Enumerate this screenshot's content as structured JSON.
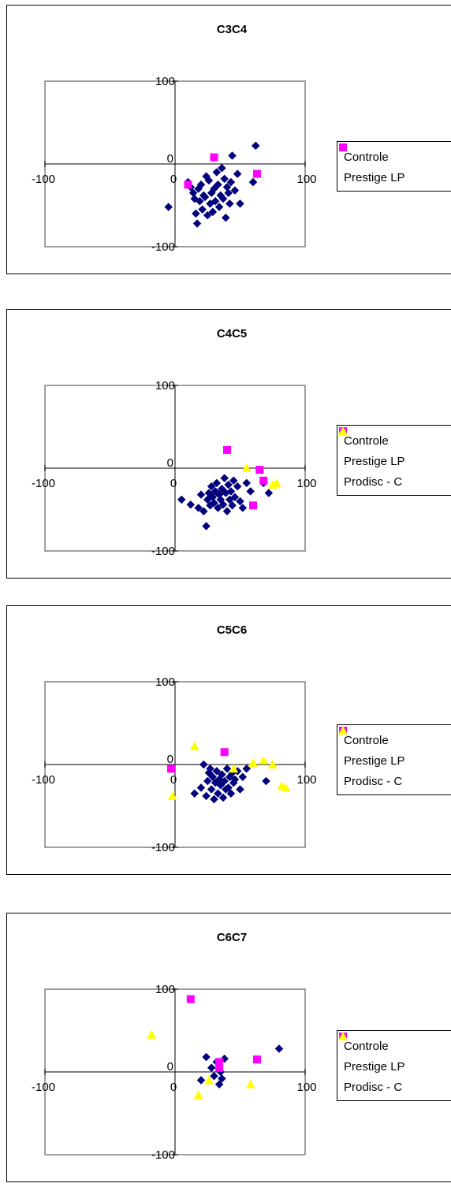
{
  "chart_data": [
    {
      "type": "scatter",
      "title": "C3C4",
      "xlim": [
        -100,
        100
      ],
      "ylim": [
        -100,
        100
      ],
      "tick_labels": {
        "x_neg": "-100",
        "x_zero": "0",
        "x_pos": "100",
        "y_pos": "100",
        "y_zero": "0",
        "y_neg": "-100"
      },
      "series": [
        {
          "name": "Controle",
          "marker": "diamond",
          "color": "#000080",
          "points": [
            [
              -5,
              -52
            ],
            [
              10,
              -22
            ],
            [
              12,
              -28
            ],
            [
              14,
              -35
            ],
            [
              15,
              -42
            ],
            [
              16,
              -60
            ],
            [
              17,
              -72
            ],
            [
              18,
              -30
            ],
            [
              19,
              -45
            ],
            [
              20,
              -25
            ],
            [
              21,
              -55
            ],
            [
              22,
              -38
            ],
            [
              23,
              -40
            ],
            [
              24,
              -15
            ],
            [
              25,
              -62
            ],
            [
              26,
              -20
            ],
            [
              27,
              -48
            ],
            [
              28,
              -35
            ],
            [
              29,
              -58
            ],
            [
              30,
              -30
            ],
            [
              31,
              -45
            ],
            [
              32,
              -10
            ],
            [
              33,
              -25
            ],
            [
              34,
              -52
            ],
            [
              35,
              -38
            ],
            [
              36,
              -5
            ],
            [
              37,
              -42
            ],
            [
              38,
              -18
            ],
            [
              39,
              -65
            ],
            [
              40,
              -28
            ],
            [
              41,
              -35
            ],
            [
              42,
              -48
            ],
            [
              43,
              -22
            ],
            [
              44,
              10
            ],
            [
              46,
              -32
            ],
            [
              48,
              -12
            ],
            [
              50,
              -48
            ],
            [
              60,
              -22
            ],
            [
              62,
              22
            ]
          ]
        },
        {
          "name": "Prestige LP",
          "marker": "square",
          "color": "#ff00ff",
          "points": [
            [
              10,
              -25
            ],
            [
              30,
              8
            ],
            [
              63,
              -12
            ]
          ]
        }
      ]
    },
    {
      "type": "scatter",
      "title": "C4C5",
      "xlim": [
        -100,
        100
      ],
      "ylim": [
        -100,
        100
      ],
      "tick_labels": {
        "x_neg": "-100",
        "x_zero": "0",
        "x_pos": "100",
        "y_pos": "100",
        "y_zero": "0",
        "y_neg": "-100"
      },
      "series": [
        {
          "name": "Controle",
          "marker": "diamond",
          "color": "#000080",
          "points": [
            [
              5,
              -38
            ],
            [
              12,
              -44
            ],
            [
              18,
              -48
            ],
            [
              20,
              -32
            ],
            [
              22,
              -52
            ],
            [
              24,
              -70
            ],
            [
              25,
              -38
            ],
            [
              26,
              -30
            ],
            [
              27,
              -45
            ],
            [
              28,
              -22
            ],
            [
              29,
              -35
            ],
            [
              30,
              -42
            ],
            [
              31,
              -28
            ],
            [
              32,
              -18
            ],
            [
              33,
              -48
            ],
            [
              34,
              -32
            ],
            [
              35,
              -38
            ],
            [
              36,
              -25
            ],
            [
              37,
              -44
            ],
            [
              38,
              -12
            ],
            [
              39,
              -30
            ],
            [
              40,
              -52
            ],
            [
              41,
              -20
            ],
            [
              42,
              -38
            ],
            [
              43,
              -28
            ],
            [
              44,
              -45
            ],
            [
              45,
              -15
            ],
            [
              46,
              -35
            ],
            [
              48,
              -22
            ],
            [
              50,
              -40
            ],
            [
              52,
              -48
            ],
            [
              55,
              -18
            ],
            [
              58,
              -28
            ],
            [
              68,
              -18
            ],
            [
              72,
              -30
            ]
          ]
        },
        {
          "name": "Prestige LP",
          "marker": "square",
          "color": "#ff00ff",
          "points": [
            [
              40,
              22
            ],
            [
              60,
              -45
            ],
            [
              65,
              -2
            ],
            [
              68,
              -15
            ]
          ]
        },
        {
          "name": "Prodisc - C",
          "marker": "triangle",
          "color": "#ffff00",
          "points": [
            [
              55,
              0
            ],
            [
              75,
              -20
            ],
            [
              78,
              -18
            ]
          ]
        }
      ]
    },
    {
      "type": "scatter",
      "title": "C5C6",
      "xlim": [
        -100,
        100
      ],
      "ylim": [
        -100,
        100
      ],
      "tick_labels": {
        "x_neg": "-100",
        "x_zero": "0",
        "x_pos": "100",
        "y_pos": "100",
        "y_zero": "0",
        "y_neg": "-100"
      },
      "series": [
        {
          "name": "Controle",
          "marker": "diamond",
          "color": "#000080",
          "points": [
            [
              15,
              -35
            ],
            [
              20,
              -28
            ],
            [
              22,
              0
            ],
            [
              24,
              -38
            ],
            [
              25,
              -20
            ],
            [
              26,
              -10
            ],
            [
              27,
              -5
            ],
            [
              28,
              -30
            ],
            [
              29,
              -15
            ],
            [
              30,
              -42
            ],
            [
              31,
              -22
            ],
            [
              32,
              -8
            ],
            [
              33,
              -35
            ],
            [
              34,
              -18
            ],
            [
              35,
              -25
            ],
            [
              36,
              -12
            ],
            [
              37,
              -40
            ],
            [
              38,
              -20
            ],
            [
              39,
              -30
            ],
            [
              40,
              -5
            ],
            [
              41,
              -28
            ],
            [
              42,
              -15
            ],
            [
              43,
              -35
            ],
            [
              44,
              -10
            ],
            [
              45,
              -22
            ],
            [
              46,
              -18
            ],
            [
              48,
              -8
            ],
            [
              50,
              -30
            ],
            [
              52,
              -15
            ],
            [
              55,
              -5
            ],
            [
              70,
              -20
            ]
          ]
        },
        {
          "name": "Prestige LP",
          "marker": "square",
          "color": "#ff00ff",
          "points": [
            [
              -3,
              -5
            ],
            [
              38,
              15
            ]
          ]
        },
        {
          "name": "Prodisc - C",
          "marker": "triangle",
          "color": "#ffff00",
          "points": [
            [
              -2,
              -38
            ],
            [
              15,
              22
            ],
            [
              45,
              -5
            ],
            [
              60,
              2
            ],
            [
              68,
              5
            ],
            [
              75,
              0
            ],
            [
              82,
              -26
            ],
            [
              85,
              -28
            ]
          ]
        }
      ]
    },
    {
      "type": "scatter",
      "title": "C6C7",
      "xlim": [
        -100,
        100
      ],
      "ylim": [
        -100,
        100
      ],
      "tick_labels": {
        "x_neg": "-100",
        "x_zero": "0",
        "x_pos": "100",
        "y_pos": "100",
        "y_zero": "0",
        "y_neg": "-100"
      },
      "series": [
        {
          "name": "Controle",
          "marker": "diamond",
          "color": "#000080",
          "points": [
            [
              20,
              -10
            ],
            [
              24,
              18
            ],
            [
              28,
              5
            ],
            [
              30,
              -5
            ],
            [
              32,
              12
            ],
            [
              34,
              -15
            ],
            [
              35,
              0
            ],
            [
              36,
              -8
            ],
            [
              38,
              16
            ],
            [
              80,
              28
            ]
          ]
        },
        {
          "name": "Prestige LP",
          "marker": "square",
          "color": "#ff00ff",
          "points": [
            [
              12,
              88
            ],
            [
              34,
              5
            ],
            [
              34,
              12
            ],
            [
              63,
              15
            ]
          ]
        },
        {
          "name": "Prodisc - C",
          "marker": "triangle",
          "color": "#ffff00",
          "points": [
            [
              -18,
              45
            ],
            [
              18,
              -28
            ],
            [
              26,
              -10
            ],
            [
              58,
              -15
            ]
          ]
        }
      ]
    }
  ]
}
